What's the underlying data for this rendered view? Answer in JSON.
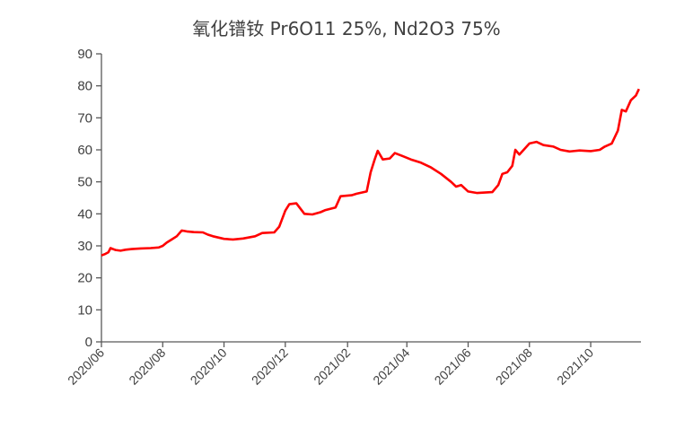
{
  "chart_data": {
    "type": "line",
    "title": "氧化镨钕 Pr6O11 25%, Nd2O3 75%",
    "xlabel": "",
    "ylabel": "",
    "ylim": [
      0,
      90
    ],
    "yticks": [
      0,
      10,
      20,
      30,
      40,
      50,
      60,
      70,
      80,
      90
    ],
    "xticks": [
      "2020/06",
      "2020/08",
      "2020/10",
      "2020/12",
      "2021/02",
      "2021/04",
      "2021/06",
      "2021/08",
      "2021/10"
    ],
    "grid": false,
    "legend": "none",
    "series": [
      {
        "color": "#ff0000",
        "points": [
          [
            "2020-06-01",
            27.0
          ],
          [
            "2020-06-05",
            27.5
          ],
          [
            "2020-06-08",
            28.0
          ],
          [
            "2020-06-10",
            29.3
          ],
          [
            "2020-06-15",
            28.7
          ],
          [
            "2020-06-20",
            28.5
          ],
          [
            "2020-06-25",
            28.8
          ],
          [
            "2020-07-01",
            29.0
          ],
          [
            "2020-07-10",
            29.2
          ],
          [
            "2020-07-20",
            29.3
          ],
          [
            "2020-07-28",
            29.5
          ],
          [
            "2020-08-01",
            30.0
          ],
          [
            "2020-08-05",
            31.0
          ],
          [
            "2020-08-10",
            32.0
          ],
          [
            "2020-08-15",
            33.0
          ],
          [
            "2020-08-20",
            34.8
          ],
          [
            "2020-08-25",
            34.5
          ],
          [
            "2020-09-01",
            34.3
          ],
          [
            "2020-09-10",
            34.2
          ],
          [
            "2020-09-15",
            33.5
          ],
          [
            "2020-09-20",
            33.0
          ],
          [
            "2020-10-01",
            32.2
          ],
          [
            "2020-10-10",
            32.0
          ],
          [
            "2020-10-20",
            32.3
          ],
          [
            "2020-11-01",
            33.0
          ],
          [
            "2020-11-08",
            34.0
          ],
          [
            "2020-11-20",
            34.2
          ],
          [
            "2020-11-25",
            36.0
          ],
          [
            "2020-12-01",
            41.0
          ],
          [
            "2020-12-05",
            43.0
          ],
          [
            "2020-12-12",
            43.3
          ],
          [
            "2020-12-20",
            40.0
          ],
          [
            "2020-12-28",
            39.8
          ],
          [
            "2021-01-05",
            40.5
          ],
          [
            "2021-01-10",
            41.2
          ],
          [
            "2021-01-20",
            42.0
          ],
          [
            "2021-01-25",
            45.5
          ],
          [
            "2021-02-05",
            45.8
          ],
          [
            "2021-02-10",
            46.3
          ],
          [
            "2021-02-20",
            47.0
          ],
          [
            "2021-02-24",
            53.0
          ],
          [
            "2021-02-28",
            57.0
          ],
          [
            "2021-03-03",
            59.7
          ],
          [
            "2021-03-08",
            57.0
          ],
          [
            "2021-03-15",
            57.3
          ],
          [
            "2021-03-20",
            59.0
          ],
          [
            "2021-03-28",
            58.0
          ],
          [
            "2021-04-05",
            57.0
          ],
          [
            "2021-04-15",
            56.0
          ],
          [
            "2021-04-25",
            54.5
          ],
          [
            "2021-05-05",
            52.5
          ],
          [
            "2021-05-15",
            50.0
          ],
          [
            "2021-05-20",
            48.5
          ],
          [
            "2021-05-25",
            49.0
          ],
          [
            "2021-06-01",
            47.0
          ],
          [
            "2021-06-10",
            46.5
          ],
          [
            "2021-06-25",
            46.8
          ],
          [
            "2021-07-01",
            49.0
          ],
          [
            "2021-07-05",
            52.5
          ],
          [
            "2021-07-10",
            53.0
          ],
          [
            "2021-07-15",
            55.0
          ],
          [
            "2021-07-18",
            60.0
          ],
          [
            "2021-07-22",
            58.5
          ],
          [
            "2021-08-01",
            62.0
          ],
          [
            "2021-08-08",
            62.5
          ],
          [
            "2021-08-15",
            61.5
          ],
          [
            "2021-08-25",
            61.0
          ],
          [
            "2021-09-01",
            60.0
          ],
          [
            "2021-09-10",
            59.5
          ],
          [
            "2021-09-20",
            59.8
          ],
          [
            "2021-10-01",
            59.6
          ],
          [
            "2021-10-10",
            60.0
          ],
          [
            "2021-10-15",
            61.0
          ],
          [
            "2021-10-22",
            62.0
          ],
          [
            "2021-10-28",
            66.0
          ],
          [
            "2021-11-01",
            72.5
          ],
          [
            "2021-11-05",
            72.0
          ],
          [
            "2021-11-10",
            75.5
          ],
          [
            "2021-11-15",
            77.0
          ],
          [
            "2021-11-18",
            79.0
          ]
        ]
      }
    ]
  }
}
